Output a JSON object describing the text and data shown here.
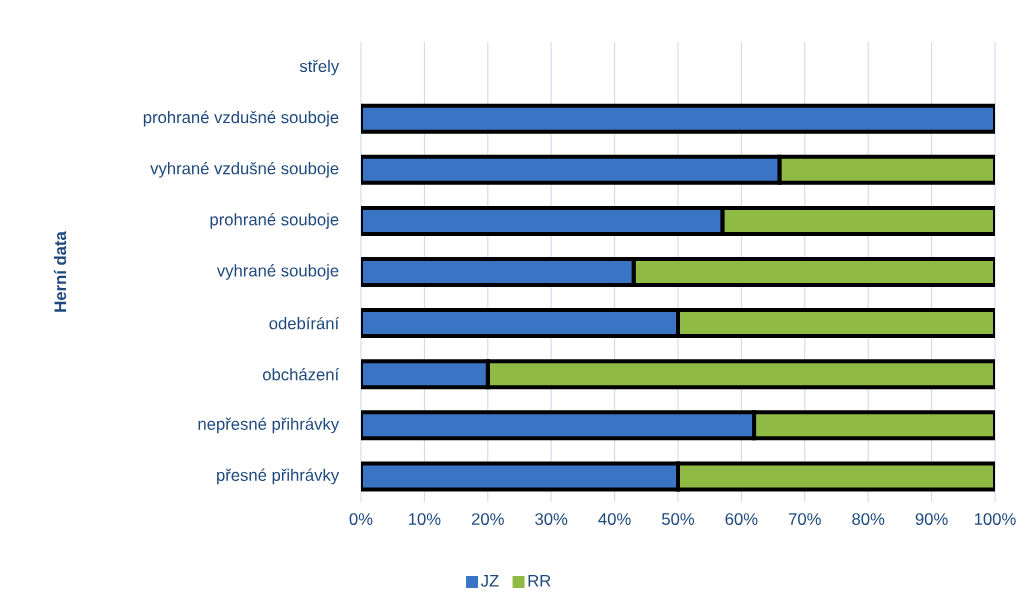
{
  "chart_data": {
    "type": "bar",
    "orientation": "horizontal",
    "stacked": true,
    "ylabel": "Herní data",
    "categories": [
      "střely",
      "prohrané vzdušné souboje",
      "vyhrané vzdušné souboje",
      "prohrané souboje",
      "vyhrané souboje",
      "odebírání",
      "obcházení",
      "nepřesné přihrávky",
      "přesné přihrávky"
    ],
    "series": [
      {
        "name": "JZ",
        "color": "#3a74c4",
        "values": [
          0,
          100,
          66,
          57,
          43,
          50,
          20,
          62,
          50
        ]
      },
      {
        "name": "RR",
        "color": "#8fbb45",
        "values": [
          0,
          0,
          34,
          43,
          57,
          50,
          80,
          38,
          50
        ]
      }
    ],
    "xlim": [
      0,
      100
    ],
    "xticks": [
      {
        "value": 0,
        "label": "0%"
      },
      {
        "value": 10,
        "label": "10%"
      },
      {
        "value": 20,
        "label": "20%"
      },
      {
        "value": 30,
        "label": "30%"
      },
      {
        "value": 40,
        "label": "40%"
      },
      {
        "value": 50,
        "label": "50%"
      },
      {
        "value": 60,
        "label": "60%"
      },
      {
        "value": 70,
        "label": "70%"
      },
      {
        "value": 80,
        "label": "80%"
      },
      {
        "value": 90,
        "label": "90%"
      },
      {
        "value": 100,
        "label": "100%"
      }
    ],
    "grid": "x",
    "legend": "bottom"
  }
}
